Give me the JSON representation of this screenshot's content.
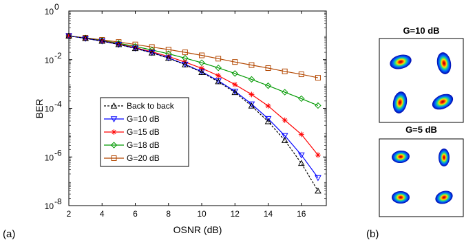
{
  "chart_data": [
    {
      "type": "line",
      "xlabel": "OSNR (dB)",
      "ylabel": "BER",
      "xlim": [
        2,
        17.5
      ],
      "ylim_exponent": [
        -8,
        0
      ],
      "yscale": "log",
      "x": [
        2,
        3,
        4,
        5,
        6,
        7,
        8,
        9,
        10,
        11,
        12,
        13,
        14,
        15,
        16,
        17
      ],
      "xticks": [
        "2",
        "4",
        "6",
        "8",
        "10",
        "12",
        "14",
        "16"
      ],
      "yticks": [
        {
          "base": "10",
          "exp": "0"
        },
        {
          "base": "10",
          "exp": "-2"
        },
        {
          "base": "10",
          "exp": "-4"
        },
        {
          "base": "10",
          "exp": "-6"
        },
        {
          "base": "10",
          "exp": "-8"
        }
      ],
      "legend_position": "center-left",
      "series": [
        {
          "name": "Back to back",
          "color": "#000000",
          "marker": "triangle-up",
          "dashed": true,
          "values": [
            0.095,
            0.075,
            0.058,
            0.042,
            0.029,
            0.019,
            0.0115,
            0.0062,
            0.003,
            0.00125,
            0.00045,
            0.000125,
            2.85e-05,
            4.8e-06,
            5.5e-07,
            4e-08
          ]
        },
        {
          "name": "G=10 dB",
          "color": "#0000ff",
          "marker": "triangle-down",
          "dashed": false,
          "values": [
            0.095,
            0.075,
            0.058,
            0.042,
            0.0295,
            0.0195,
            0.0118,
            0.0064,
            0.0032,
            0.00135,
            0.0005,
            0.00015,
            3.75e-05,
            7.5e-06,
            1.2e-06,
            1.4e-07
          ]
        },
        {
          "name": "G=15 dB",
          "color": "#ff0000",
          "marker": "asterisk",
          "dashed": false,
          "values": [
            0.095,
            0.076,
            0.059,
            0.044,
            0.031,
            0.021,
            0.0135,
            0.0079,
            0.0044,
            0.0022,
            0.00095,
            0.00037,
            0.000125,
            3.25e-05,
            8.5e-06,
            1.2e-06
          ]
        },
        {
          "name": "G=18 dB",
          "color": "#009900",
          "marker": "diamond",
          "dashed": false,
          "values": [
            0.095,
            0.077,
            0.061,
            0.047,
            0.035,
            0.025,
            0.0175,
            0.0115,
            0.0075,
            0.0046,
            0.0027,
            0.00155,
            0.00085,
            0.00046,
            0.00025,
            0.00013
          ]
        },
        {
          "name": "G=20 dB",
          "color": "#b34700",
          "marker": "square",
          "dashed": false,
          "values": [
            0.095,
            0.079,
            0.065,
            0.053,
            0.042,
            0.033,
            0.026,
            0.02,
            0.015,
            0.011,
            0.008,
            0.006,
            0.0045,
            0.0033,
            0.0025,
            0.0018
          ]
        }
      ]
    },
    {
      "type": "other",
      "title": "G=10 dB",
      "description_points": 4
    },
    {
      "type": "other",
      "title": "G=5 dB",
      "description_points": 4
    }
  ],
  "panel_labels": {
    "a": "(a)",
    "b": "(b)"
  }
}
